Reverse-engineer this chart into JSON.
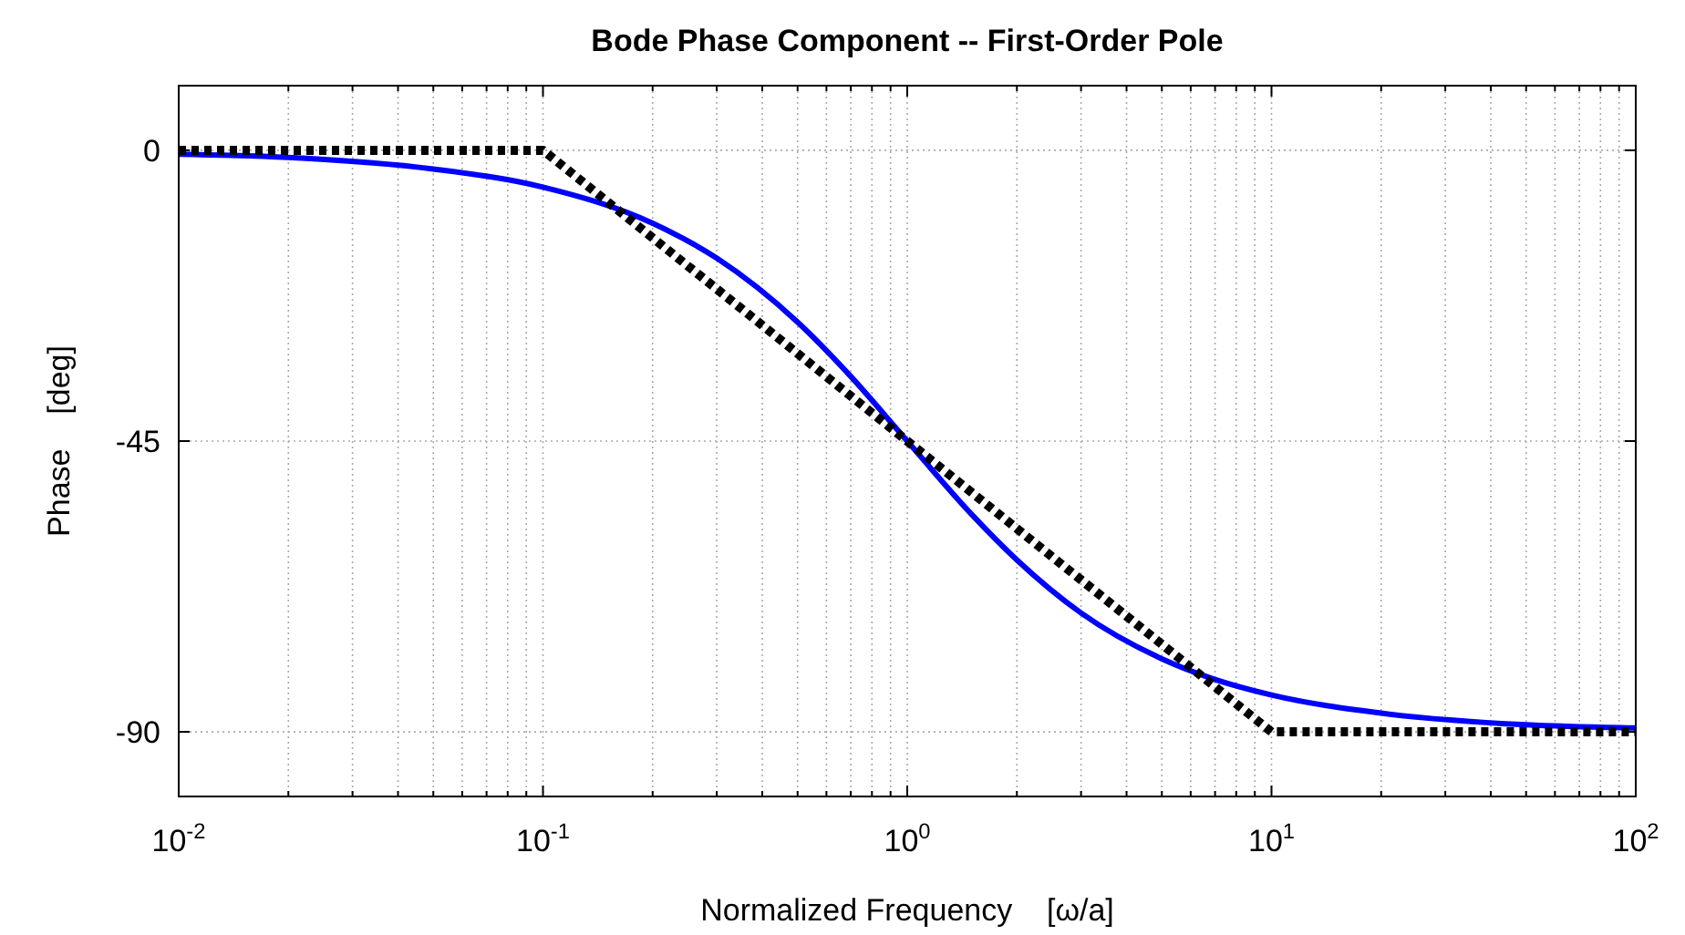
{
  "chart_data": {
    "type": "line",
    "title": "Bode Phase Component -- First-Order Pole",
    "xlabel": "Normalized Frequency    [ω/a]",
    "ylabel": "Phase    [deg]",
    "log": "x",
    "grid": true,
    "xlim": [
      0.01,
      100
    ],
    "ylim": [
      -100,
      10
    ],
    "yticks": [
      -90,
      -45,
      0
    ],
    "xticks": [
      {
        "value": 0.01,
        "label": "10$^{-2}$"
      },
      {
        "value": 0.02,
        "label": null
      },
      {
        "value": 0.03,
        "label": null
      },
      {
        "value": 0.04,
        "label": null
      },
      {
        "value": 0.05,
        "label": null
      },
      {
        "value": 0.06,
        "label": null
      },
      {
        "value": 0.07,
        "label": null
      },
      {
        "value": 0.08,
        "label": null
      },
      {
        "value": 0.09,
        "label": null
      },
      {
        "value": 0.1,
        "label": "10$^{-1}$"
      },
      {
        "value": 0.2,
        "label": null
      },
      {
        "value": 0.3,
        "label": null
      },
      {
        "value": 0.4,
        "label": null
      },
      {
        "value": 0.5,
        "label": null
      },
      {
        "value": 0.6,
        "label": null
      },
      {
        "value": 0.7,
        "label": null
      },
      {
        "value": 0.8,
        "label": null
      },
      {
        "value": 0.9,
        "label": null
      },
      {
        "value": 1,
        "label": "10$^{0}$"
      },
      {
        "value": 2,
        "label": null
      },
      {
        "value": 3,
        "label": null
      },
      {
        "value": 4,
        "label": null
      },
      {
        "value": 5,
        "label": null
      },
      {
        "value": 6,
        "label": null
      },
      {
        "value": 7,
        "label": null
      },
      {
        "value": 8,
        "label": null
      },
      {
        "value": 9,
        "label": null
      },
      {
        "value": 10,
        "label": "10$^{1}$"
      },
      {
        "value": 20,
        "label": null
      },
      {
        "value": 30,
        "label": null
      },
      {
        "value": 40,
        "label": null
      },
      {
        "value": 50,
        "label": null
      },
      {
        "value": 60,
        "label": null
      },
      {
        "value": 70,
        "label": null
      },
      {
        "value": 80,
        "label": null
      },
      {
        "value": 90,
        "label": null
      },
      {
        "value": 100,
        "label": "10$^{2}$"
      }
    ],
    "series": [
      {
        "color": "#0000ff",
        "line_style": "solid",
        "x": [
          0.01,
          0.02,
          0.05,
          0.1,
          0.2,
          0.3,
          0.5,
          0.7,
          1,
          1.5,
          2,
          3,
          5,
          7,
          10,
          20,
          50,
          100
        ],
        "values": [
          -0.6,
          -1.1,
          -2.9,
          -5.7,
          -11.3,
          -16.7,
          -26.6,
          -35,
          -45,
          -56.3,
          -63.4,
          -71.6,
          -78.7,
          -81.9,
          -84.3,
          -87.1,
          -88.9,
          -89.4
        ]
      },
      {
        "color": "#000000",
        "line_style": "dotted",
        "x": [
          0.01,
          0.1,
          10,
          100
        ],
        "values": [
          0,
          0,
          -90,
          -90
        ]
      }
    ]
  }
}
